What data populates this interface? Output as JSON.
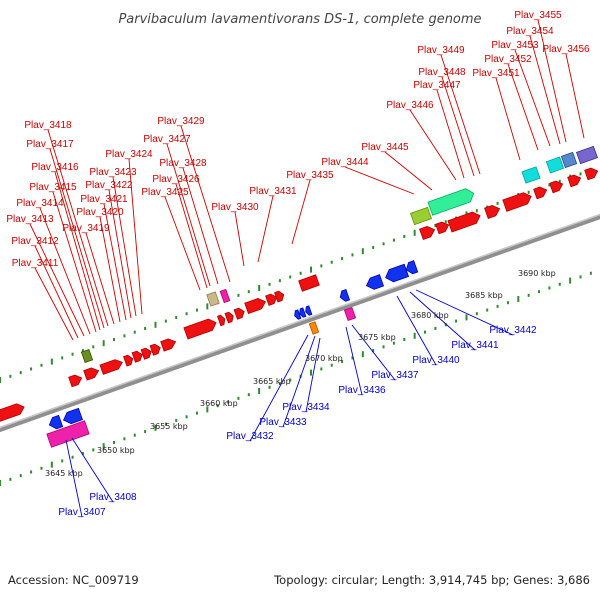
{
  "title": "Parvibaculum lavamentivorans DS-1, complete genome",
  "footer": {
    "accession": "Accession: NC_009719",
    "topology": "Topology: circular; Length: 3,914,745 bp; Genes: 3,686"
  },
  "colors": {
    "forward_labels": "#cc0000",
    "reverse_labels": "#0000cc",
    "backbone": "#999999",
    "ticks": "#2e8b2e"
  },
  "scale_ticks": [
    "3645 kbp",
    "3650 kbp",
    "3655 kbp",
    "3660 kbp",
    "3665 kbp",
    "3670 kbp",
    "3675 kbp",
    "3680 kbp",
    "3685 kbp",
    "3690 kbp"
  ],
  "forward_genes": [
    "Plav_3411",
    "Plav_3412",
    "Plav_3413",
    "Plav_3414",
    "Plav_3415",
    "Plav_3416",
    "Plav_3417",
    "Plav_3418",
    "Plav_3419",
    "Plav_3420",
    "Plav_3421",
    "Plav_3422",
    "Plav_3423",
    "Plav_3424",
    "Plav_3425",
    "Plav_3426",
    "Plav_3427",
    "Plav_3428",
    "Plav_3429",
    "Plav_3430",
    "Plav_3431",
    "Plav_3435",
    "Plav_3444",
    "Plav_3445",
    "Plav_3446",
    "Plav_3447",
    "Plav_3448",
    "Plav_3449",
    "Plav_3451",
    "Plav_3452",
    "Plav_3453",
    "Plav_3454",
    "Plav_3455",
    "Plav_3456"
  ],
  "reverse_genes": [
    "Plav_3407",
    "Plav_3408",
    "Plav_3432",
    "Plav_3433",
    "Plav_3434",
    "Plav_3436",
    "Plav_3437",
    "Plav_3440",
    "Plav_3441",
    "Plav_3442"
  ]
}
